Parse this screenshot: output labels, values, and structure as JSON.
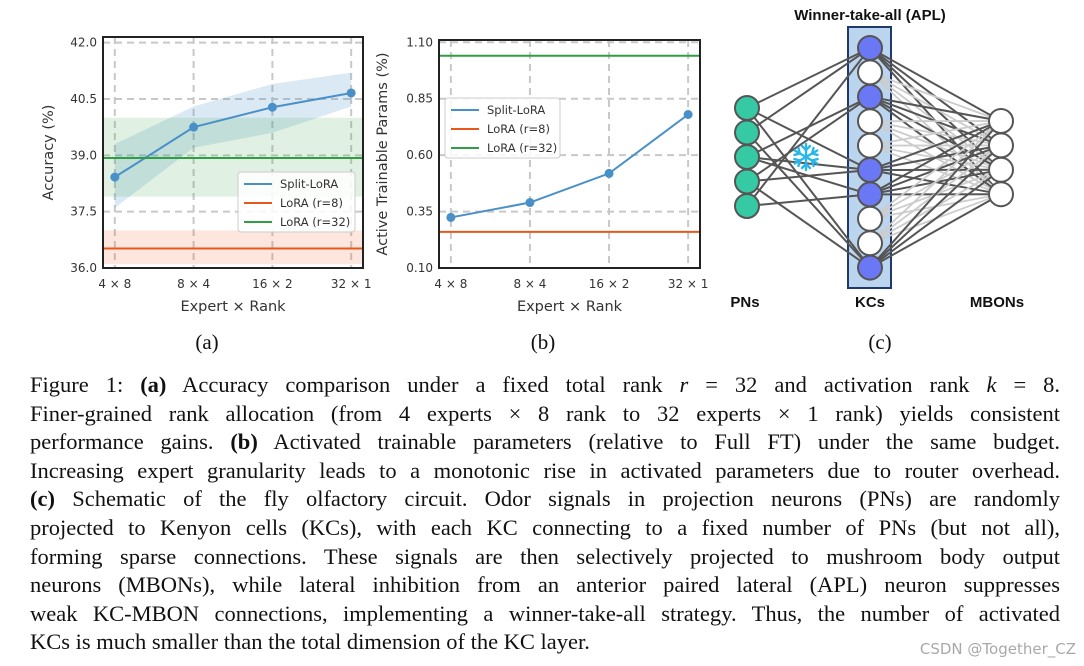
{
  "chart_data": [
    {
      "id": "a",
      "type": "line",
      "xlabel": "Expert × Rank",
      "ylabel": "Accuracy (%)",
      "categories": [
        "4 × 8",
        "8 × 4",
        "16 × 2",
        "32 × 1"
      ],
      "yticks": [
        "36.0",
        "37.5",
        "39.0",
        "40.5",
        "42.0"
      ],
      "ylim": [
        36.0,
        42.15
      ],
      "grid": true,
      "legend_position": "center-right",
      "series": [
        {
          "name": "Split-LoRA",
          "color": "#4a90c8",
          "values": [
            38.42,
            39.75,
            40.28,
            40.66
          ],
          "band_low": [
            37.6,
            39.2,
            39.6,
            40.3
          ],
          "band_high": [
            39.3,
            40.3,
            40.9,
            41.2
          ],
          "markers": true
        },
        {
          "name": "LoRA (r=8)",
          "color": "#e8581c",
          "constant": 36.52,
          "band_low": 36.1,
          "band_high": 37.0
        },
        {
          "name": "LoRA (r=32)",
          "color": "#2ea043",
          "constant": 38.93,
          "band_low": 37.9,
          "band_high": 40.0
        }
      ]
    },
    {
      "id": "b",
      "type": "line",
      "xlabel": "Expert × Rank",
      "ylabel": "Active Trainable Params (%)",
      "categories": [
        "4 × 8",
        "8 × 4",
        "16 × 2",
        "32 × 1"
      ],
      "yticks": [
        "0.10",
        "0.35",
        "0.60",
        "0.85",
        "1.10"
      ],
      "ylim": [
        0.1,
        1.11
      ],
      "grid": true,
      "legend_position": "upper-left",
      "series": [
        {
          "name": "Split-LoRA",
          "color": "#4a90c8",
          "values": [
            0.324,
            0.39,
            0.519,
            0.78
          ],
          "markers": true
        },
        {
          "name": "LoRA (r=8)",
          "color": "#e8581c",
          "constant": 0.26
        },
        {
          "name": "LoRA (r=32)",
          "color": "#2ea043",
          "constant": 1.04
        }
      ]
    }
  ],
  "diagram": {
    "title": "Winner-take-all (APL)",
    "layers": {
      "pns": "PNs",
      "kcs": "KCs",
      "mbons": "MBONs"
    },
    "pn_count": 5,
    "kc_count": 10,
    "mbon_count": 4,
    "active_kcs": [
      0,
      2,
      5,
      6,
      9
    ],
    "pn_kc_edges": [
      [
        0,
        0
      ],
      [
        0,
        5
      ],
      [
        1,
        0
      ],
      [
        1,
        9
      ],
      [
        2,
        2
      ],
      [
        2,
        6
      ],
      [
        3,
        5
      ],
      [
        3,
        2
      ],
      [
        3,
        9
      ],
      [
        4,
        6
      ],
      [
        4,
        0
      ],
      [
        0,
        9
      ],
      [
        2,
        5
      ]
    ],
    "icon": "snowflake-icon",
    "colors": {
      "pn": "#35c9a4",
      "kc_active": "#6b78f5",
      "kc_inactive": "#ffffff",
      "apl_box": "#bcd5ee",
      "edge_strong": "#555555",
      "edge_weak": "#cccccc",
      "snowflake": "#29b6e8"
    }
  },
  "subfigure_labels": [
    "(a)",
    "(b)",
    "(c)"
  ],
  "caption": {
    "lines": [
      [
        {
          "t": "Figure 1: "
        },
        {
          "t": "(a)",
          "b": true
        },
        {
          "t": " Accuracy comparison under a fixed total rank "
        },
        {
          "t": "r",
          "i": true
        },
        {
          "t": " = 32 and activation rank "
        },
        {
          "t": "k",
          "i": true
        },
        {
          "t": " = 8."
        }
      ],
      [
        {
          "t": "Finer-grained rank allocation (from 4 experts × 8 rank to 32 experts × 1 rank) yields consistent"
        }
      ],
      [
        {
          "t": "performance gains. "
        },
        {
          "t": "(b)",
          "b": true
        },
        {
          "t": " Activated trainable parameters (relative to Full FT) under the same budget."
        }
      ],
      [
        {
          "t": "Increasing expert granularity leads to a monotonic rise in activated parameters due to router overhead."
        }
      ],
      [
        {
          "t": "(c)",
          "b": true
        },
        {
          "t": " Schematic of the fly olfactory circuit. Odor signals in projection neurons (PNs) are randomly"
        }
      ],
      [
        {
          "t": "projected to Kenyon cells (KCs), with each KC connecting to a fixed number of PNs (but not all),"
        }
      ],
      [
        {
          "t": "forming sparse connections. These signals are then selectively projected to mushroom body output"
        }
      ],
      [
        {
          "t": "neurons (MBONs), while lateral inhibition from an anterior paired lateral (APL) neuron suppresses"
        }
      ],
      [
        {
          "t": "weak KC-MBON connections, implementing a winner-take-all strategy. Thus, the number of activated"
        }
      ],
      [
        {
          "t": "KCs is much smaller than the total dimension of the KC layer."
        }
      ]
    ]
  },
  "watermark": "CSDN @Together_CZ"
}
